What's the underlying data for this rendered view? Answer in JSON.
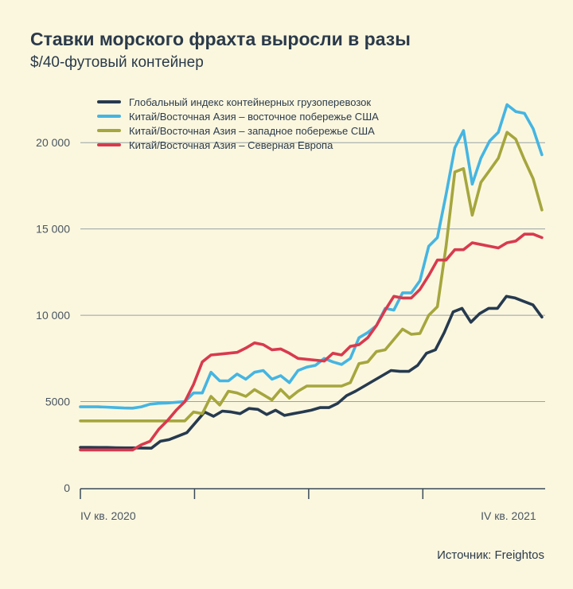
{
  "title": "Ставки морского фрахта выросли в разы",
  "subtitle": "$/40-футовый контейнер",
  "source": "Источник: Freightos",
  "chart_data": {
    "type": "line",
    "ylim": [
      0,
      22500
    ],
    "grid": true,
    "legend_position": "top-left",
    "y_ticks": [
      {
        "value": 0,
        "label": "0"
      },
      {
        "value": 5000,
        "label": "5000"
      },
      {
        "value": 10000,
        "label": "10 000"
      },
      {
        "value": 15000,
        "label": "15 000"
      },
      {
        "value": 20000,
        "label": "20 000"
      }
    ],
    "x_range": [
      0,
      57
    ],
    "x_ticks": [
      0,
      14,
      28,
      42
    ],
    "x_labels": [
      {
        "x": 0,
        "label": "IV кв. 2020"
      },
      {
        "x": 52.5,
        "label": "IV кв. 2021"
      }
    ],
    "series": [
      {
        "name": "Глобальный индекс контейнерных грузоперевозок",
        "color": "#263a4f",
        "values": [
          2350,
          2350,
          2340,
          2340,
          2330,
          2320,
          2320,
          2310,
          2300,
          2700,
          2800,
          3000,
          3200,
          3800,
          4400,
          4150,
          4450,
          4400,
          4300,
          4600,
          4550,
          4250,
          4500,
          4200,
          4300,
          4400,
          4500,
          4650,
          4650,
          4900,
          5350,
          5600,
          5900,
          6200,
          6500,
          6800,
          6750,
          6750,
          7100,
          7800,
          8000,
          9000,
          10200,
          10400,
          9600,
          10100,
          10400,
          10400,
          11100,
          11000,
          10800,
          10600,
          9900
        ]
      },
      {
        "name": "Китай/Восточная Азия – восточное побережье США",
        "color": "#45b5e2",
        "values": [
          4700,
          4700,
          4700,
          4680,
          4650,
          4630,
          4620,
          4700,
          4850,
          4900,
          4920,
          4960,
          5000,
          5500,
          5500,
          6700,
          6200,
          6200,
          6600,
          6300,
          6700,
          6800,
          6300,
          6500,
          6100,
          6800,
          7000,
          7100,
          7500,
          7300,
          7150,
          7500,
          8700,
          9000,
          9400,
          10400,
          10300,
          11300,
          11300,
          12000,
          14000,
          14500,
          17000,
          19700,
          20700,
          17600,
          19100,
          20100,
          20600,
          22200,
          21800,
          21700,
          20800,
          19300
        ]
      },
      {
        "name": "Китай/Восточная Азия – западное побережье США",
        "color": "#a5a63d",
        "values": [
          3880,
          3880,
          3880,
          3880,
          3880,
          3880,
          3880,
          3880,
          3880,
          3880,
          3880,
          3880,
          3880,
          4400,
          4300,
          5300,
          4800,
          5600,
          5500,
          5300,
          5700,
          5400,
          5100,
          5700,
          5200,
          5600,
          5900,
          5900,
          5900,
          5900,
          5900,
          6100,
          7200,
          7300,
          7900,
          8000,
          8600,
          9200,
          8900,
          8950,
          10000,
          10500,
          14000,
          18300,
          18500,
          15800,
          17700,
          18400,
          19100,
          20600,
          20200,
          19000,
          17900,
          16100
        ]
      },
      {
        "name": "Китай/Восточная Азия – Северная Европа",
        "color": "#d83a4e",
        "values": [
          2200,
          2200,
          2200,
          2200,
          2200,
          2200,
          2200,
          2500,
          2700,
          3400,
          3900,
          4500,
          5000,
          6000,
          7300,
          7700,
          7750,
          7800,
          7850,
          8100,
          8400,
          8300,
          8000,
          8050,
          7800,
          7500,
          7450,
          7400,
          7350,
          7800,
          7700,
          8200,
          8300,
          8700,
          9400,
          10300,
          11100,
          11000,
          11000,
          11500,
          12300,
          13200,
          13200,
          13800,
          13800,
          14200,
          14100,
          14000,
          13900,
          14200,
          14300,
          14700,
          14700,
          14500
        ]
      }
    ]
  }
}
